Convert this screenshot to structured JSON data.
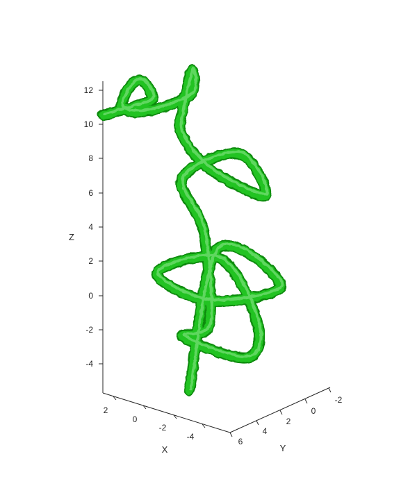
{
  "chart_data": {
    "type": "surface3d",
    "xlabel": "X",
    "ylabel": "Y",
    "zlabel": "Z",
    "xlim": [
      -5,
      3
    ],
    "ylim": [
      -3,
      6
    ],
    "zlim": [
      -5,
      12.5
    ],
    "xticks": [
      2,
      0,
      -2,
      -4
    ],
    "yticks": [
      6,
      4,
      2,
      0,
      -2
    ],
    "zticks": [
      12,
      10,
      8,
      6,
      4,
      2,
      0,
      -2,
      -4
    ],
    "grid": false,
    "colors": {
      "surface": "#22c322",
      "surface_dark": "#0f8a0f",
      "surface_light": "#8fe88f",
      "axis": "#262626"
    },
    "tube_path": [
      {
        "x": 0,
        "y": 2.5,
        "z": -5.0
      },
      {
        "x": 0,
        "y": 0,
        "z": 2.5
      },
      {
        "x": -4.0,
        "y": 0,
        "z": 1.5
      },
      {
        "x": -3.0,
        "y": 5.0,
        "z": 1.8
      },
      {
        "x": 1.0,
        "y": 4.0,
        "z": 2.0
      },
      {
        "x": 0.5,
        "y": -1.0,
        "z": 1.5
      },
      {
        "x": -2.5,
        "y": 0,
        "z": -1.0
      },
      {
        "x": -4.0,
        "y": 3.0,
        "z": -1.8
      },
      {
        "x": -1.0,
        "y": 4.5,
        "z": -1.0
      },
      {
        "x": 0.5,
        "y": 0,
        "z": -2.0
      },
      {
        "x": 0.5,
        "y": 0.5,
        "z": 3.5
      },
      {
        "x": 1.5,
        "y": 1.0,
        "z": 6.5
      },
      {
        "x": 0,
        "y": -2.0,
        "z": 7.5
      },
      {
        "x": -3.0,
        "y": 0,
        "z": 6.5
      },
      {
        "x": -1.0,
        "y": 2.0,
        "z": 8.0
      },
      {
        "x": 1.5,
        "y": 1.0,
        "z": 9.0
      },
      {
        "x": 1.5,
        "y": 1.0,
        "z": 10.4
      },
      {
        "x": 3.0,
        "y": -2.0,
        "z": 11.5
      },
      {
        "x": 1.0,
        "y": 1.0,
        "z": 11.5
      },
      {
        "x": 2.0,
        "y": 3.5,
        "z": 11.0
      },
      {
        "x": 2.5,
        "y": 5.0,
        "z": 11.5
      },
      {
        "x": 3.0,
        "y": 3.5,
        "z": 12.2
      },
      {
        "x": 3.0,
        "y": 2.5,
        "z": 12.2
      },
      {
        "x": 2.0,
        "y": 3.0,
        "z": 11.8
      },
      {
        "x": 2.0,
        "y": 3.5,
        "z": 11.5
      },
      {
        "x": 3.0,
        "y": 6.0,
        "z": 11.2
      }
    ]
  }
}
